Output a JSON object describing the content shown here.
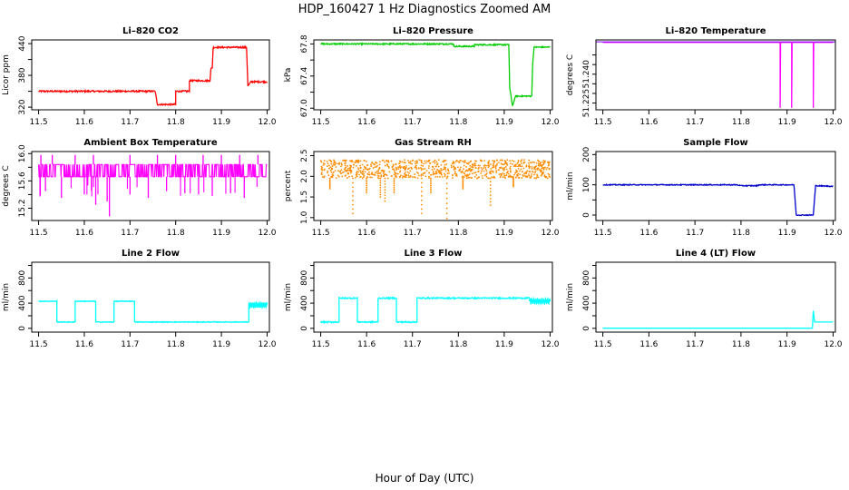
{
  "figure": {
    "title": "HDP_160427  1 Hz Diagnostics Zoomed AM",
    "xlabel": "Hour of Day (UTC)"
  },
  "chart_data": [
    {
      "type": "line",
      "title": "Li–820 CO2",
      "ylabel": "Licor ppm",
      "color": "#ff0000",
      "xlim": [
        11.485,
        12.005
      ],
      "ylim": [
        315,
        447
      ],
      "xticks": [
        "11.5",
        "11.6",
        "11.7",
        "11.8",
        "11.9",
        "12.0"
      ],
      "yticks": [
        "320",
        "380",
        "440"
      ],
      "yticks_minor": [
        320,
        350,
        380,
        410,
        440
      ],
      "noise": 1.5,
      "points": [
        [
          11.5,
          350
        ],
        [
          11.755,
          350
        ],
        [
          11.76,
          325
        ],
        [
          11.8,
          325
        ],
        [
          11.8,
          350
        ],
        [
          11.83,
          350
        ],
        [
          11.83,
          370
        ],
        [
          11.875,
          370
        ],
        [
          11.877,
          392
        ],
        [
          11.88,
          395
        ],
        [
          11.882,
          433
        ],
        [
          11.955,
          433
        ],
        [
          11.958,
          360
        ],
        [
          11.965,
          368
        ],
        [
          12.0,
          368
        ]
      ]
    },
    {
      "type": "line",
      "title": "Li–820 Pressure",
      "ylabel": "kPa",
      "color": "#00cc00",
      "xlim": [
        11.485,
        12.005
      ],
      "ylim": [
        66.98,
        67.85
      ],
      "xticks": [
        "11.5",
        "11.6",
        "11.7",
        "11.8",
        "11.9",
        "12.0"
      ],
      "yticks": [
        "67.0",
        "67.4",
        "67.8"
      ],
      "yticks_minor": [
        67.0,
        67.2,
        67.4,
        67.6,
        67.8
      ],
      "noise": 0.008,
      "points": [
        [
          11.5,
          67.8
        ],
        [
          11.79,
          67.8
        ],
        [
          11.79,
          67.77
        ],
        [
          11.835,
          67.77
        ],
        [
          11.835,
          67.79
        ],
        [
          11.91,
          67.79
        ],
        [
          11.912,
          67.25
        ],
        [
          11.918,
          67.03
        ],
        [
          11.925,
          67.15
        ],
        [
          11.95,
          67.15
        ],
        [
          11.96,
          67.15
        ],
        [
          11.962,
          67.55
        ],
        [
          11.965,
          67.76
        ],
        [
          12.0,
          67.76
        ]
      ]
    },
    {
      "type": "line",
      "title": "Li–820 Temperature",
      "ylabel": "degrees C",
      "color": "#ff00ff",
      "xlim": [
        11.485,
        12.005
      ],
      "ylim": [
        51.2215,
        51.2578
      ],
      "xticks": [
        "11.5",
        "11.6",
        "11.7",
        "11.8",
        "11.9",
        "12.0"
      ],
      "yticks": [
        "51.225",
        "51.240"
      ],
      "yticks_minor": [
        51.225,
        51.23,
        51.235,
        51.24,
        51.245,
        51.25
      ],
      "noise": 0,
      "points": [
        [
          11.5,
          51.2565
        ],
        [
          11.885,
          51.2565
        ],
        [
          11.885,
          51.2225
        ],
        [
          11.886,
          51.2565
        ],
        [
          11.91,
          51.2565
        ],
        [
          11.91,
          51.2225
        ],
        [
          11.911,
          51.2565
        ],
        [
          11.957,
          51.2565
        ],
        [
          11.957,
          51.2225
        ],
        [
          11.958,
          51.2565
        ],
        [
          12.0,
          51.2565
        ]
      ],
      "ref_line": 51.2568,
      "ref_color": "#7f00ff"
    },
    {
      "type": "line",
      "title": "Ambient Box Temperature",
      "ylabel": "degrees C",
      "color": "#ff00ff",
      "xlim": [
        11.485,
        12.005
      ],
      "ylim": [
        15.02,
        16.03
      ],
      "xticks": [
        "11.5",
        "11.6",
        "11.7",
        "11.8",
        "11.9",
        "12.0"
      ],
      "yticks": [
        "15.2",
        "15.6",
        "16.0"
      ],
      "yticks_minor": [
        15.2,
        15.4,
        15.6,
        15.8,
        16.0
      ],
      "style": "toggle",
      "low": 15.66,
      "high": 15.84,
      "spikes_down": [
        [
          11.515,
          15.45
        ],
        [
          11.55,
          15.35
        ],
        [
          11.6,
          15.4
        ],
        [
          11.625,
          15.25
        ],
        [
          11.65,
          15.3
        ],
        [
          11.655,
          15.08
        ],
        [
          11.7,
          15.4
        ],
        [
          11.74,
          15.35
        ],
        [
          11.78,
          15.45
        ],
        [
          11.82,
          15.42
        ],
        [
          11.85,
          15.4
        ],
        [
          11.88,
          15.38
        ],
        [
          11.92,
          15.42
        ],
        [
          11.95,
          15.35
        ]
      ],
      "spikes_up": [
        [
          11.505,
          15.98
        ],
        [
          11.53,
          15.98
        ],
        [
          11.58,
          15.98
        ],
        [
          11.62,
          15.98
        ],
        [
          11.7,
          15.98
        ],
        [
          11.76,
          15.98
        ],
        [
          11.8,
          15.98
        ],
        [
          11.86,
          15.98
        ],
        [
          11.9,
          15.98
        ],
        [
          11.94,
          15.98
        ],
        [
          11.98,
          15.98
        ]
      ]
    },
    {
      "type": "scatter",
      "title": "Gas Stream RH",
      "ylabel": "percent",
      "color": "#ff8c00",
      "point_color": "#cc8800",
      "xlim": [
        11.485,
        12.005
      ],
      "ylim": [
        0.93,
        2.6
      ],
      "xticks": [
        "11.5",
        "11.6",
        "11.7",
        "11.8",
        "11.9",
        "12.0"
      ],
      "yticks": [
        "1.0",
        "1.5",
        "2.0",
        "2.5"
      ],
      "yticks_minor": [
        1.0,
        1.5,
        2.0,
        2.5
      ],
      "band_low": 1.95,
      "band_high": 2.4,
      "spikes_down": [
        [
          11.52,
          1.7
        ],
        [
          11.57,
          1.1
        ],
        [
          11.6,
          1.6
        ],
        [
          11.63,
          1.5
        ],
        [
          11.64,
          1.4
        ],
        [
          11.66,
          1.6
        ],
        [
          11.72,
          1.1
        ],
        [
          11.74,
          1.6
        ],
        [
          11.775,
          0.98
        ],
        [
          11.81,
          1.7
        ],
        [
          11.87,
          1.3
        ],
        [
          11.92,
          1.75
        ]
      ]
    },
    {
      "type": "line",
      "title": "Sample Flow",
      "ylabel": "ml/min",
      "color": "#0000cc",
      "xlim": [
        11.485,
        12.005
      ],
      "ylim": [
        -18,
        210
      ],
      "xticks": [
        "11.5",
        "11.6",
        "11.7",
        "11.8",
        "11.9",
        "12.0"
      ],
      "yticks": [
        "0",
        "100",
        "200"
      ],
      "yticks_minor": [
        0,
        50,
        100,
        150,
        200
      ],
      "noise": 1.5,
      "points": [
        [
          11.5,
          100
        ],
        [
          11.79,
          100
        ],
        [
          11.8,
          97
        ],
        [
          11.835,
          97
        ],
        [
          11.84,
          100
        ],
        [
          11.915,
          100
        ],
        [
          11.92,
          0
        ],
        [
          11.957,
          0
        ],
        [
          11.962,
          97
        ],
        [
          12.0,
          95
        ]
      ]
    },
    {
      "type": "line",
      "title": "Line 2 Flow",
      "ylabel": "ml/min",
      "color": "#00ffff",
      "xlim": [
        11.485,
        12.005
      ],
      "ylim": [
        -60,
        1050
      ],
      "xticks": [
        "11.5",
        "11.6",
        "11.7",
        "11.8",
        "11.9",
        "12.0"
      ],
      "yticks": [
        "0",
        "400",
        "800"
      ],
      "yticks_minor": [
        0,
        200,
        400,
        600,
        800,
        1000
      ],
      "noise": 6,
      "points": [
        [
          11.5,
          430
        ],
        [
          11.54,
          430
        ],
        [
          11.54,
          100
        ],
        [
          11.58,
          100
        ],
        [
          11.58,
          430
        ],
        [
          11.625,
          430
        ],
        [
          11.625,
          100
        ],
        [
          11.665,
          100
        ],
        [
          11.665,
          430
        ],
        [
          11.71,
          430
        ],
        [
          11.71,
          100
        ],
        [
          11.96,
          100
        ],
        [
          11.96,
          360
        ],
        [
          12.0,
          360
        ]
      ],
      "tail_wave": [
        11.96,
        12.0,
        370,
        40
      ]
    },
    {
      "type": "line",
      "title": "Line 3 Flow",
      "ylabel": "ml/min",
      "color": "#00ffff",
      "xlim": [
        11.485,
        12.005
      ],
      "ylim": [
        -60,
        1050
      ],
      "xticks": [
        "11.5",
        "11.6",
        "11.7",
        "11.8",
        "11.9",
        "12.0"
      ],
      "yticks": [
        "0",
        "400",
        "800"
      ],
      "yticks_minor": [
        0,
        200,
        400,
        600,
        800,
        1000
      ],
      "noise": 10,
      "points": [
        [
          11.5,
          100
        ],
        [
          11.54,
          100
        ],
        [
          11.54,
          480
        ],
        [
          11.58,
          480
        ],
        [
          11.58,
          100
        ],
        [
          11.625,
          100
        ],
        [
          11.625,
          480
        ],
        [
          11.665,
          480
        ],
        [
          11.665,
          100
        ],
        [
          11.71,
          100
        ],
        [
          11.71,
          480
        ],
        [
          11.955,
          480
        ],
        [
          11.96,
          440
        ],
        [
          12.0,
          440
        ]
      ],
      "tail_wave": [
        11.955,
        12.0,
        430,
        40
      ]
    },
    {
      "type": "line",
      "title": "Line 4 (LT) Flow",
      "ylabel": "ml/min",
      "color": "#00ffff",
      "xlim": [
        11.485,
        12.005
      ],
      "ylim": [
        -60,
        1050
      ],
      "xticks": [
        "11.5",
        "11.6",
        "11.7",
        "11.8",
        "11.9",
        "12.0"
      ],
      "yticks": [
        "0",
        "400",
        "800"
      ],
      "yticks_minor": [
        0,
        200,
        400,
        600,
        800,
        1000
      ],
      "noise": 0,
      "points": [
        [
          11.5,
          2
        ],
        [
          11.955,
          2
        ],
        [
          11.957,
          280
        ],
        [
          11.96,
          100
        ],
        [
          12.0,
          100
        ]
      ]
    }
  ]
}
